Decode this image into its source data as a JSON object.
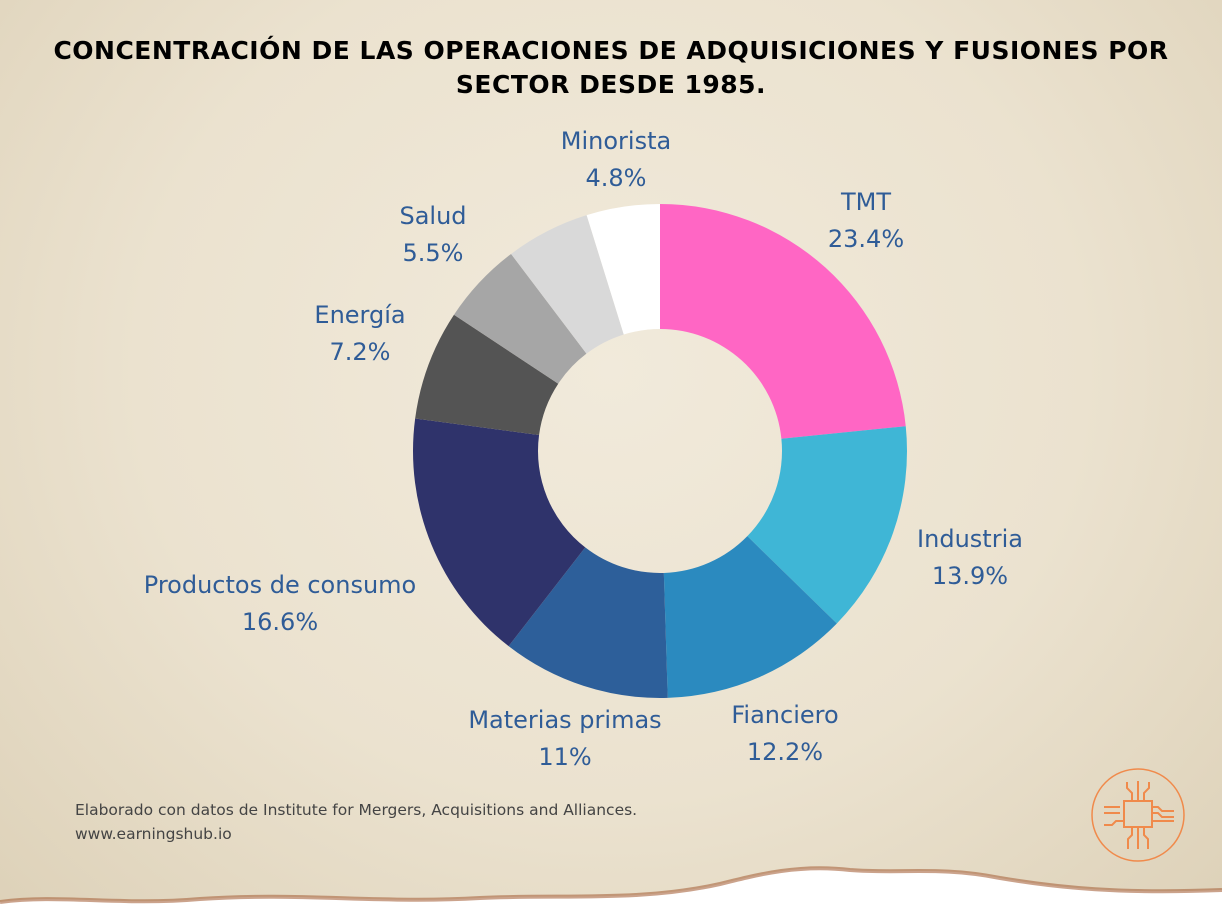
{
  "chart_data": {
    "type": "pie",
    "donut": true,
    "title": "CONCENTRACIÓN DE LAS OPERACIONES DE ADQUISICIONES Y FUSIONES POR SECTOR DESDE 1985.",
    "slices": [
      {
        "label": "TMT",
        "value_label": "23.4%",
        "value": 23.4,
        "color": "#ff66c4"
      },
      {
        "label": "Industria",
        "value_label": "13.9%",
        "value": 13.9,
        "color": "#3fb6d6"
      },
      {
        "label": "Fianciero",
        "value_label": "12.2%",
        "value": 12.2,
        "color": "#2b8abf"
      },
      {
        "label": "Materias primas",
        "value_label": "11%",
        "value": 11,
        "color": "#2d5f9a"
      },
      {
        "label": "Productos de consumo",
        "value_label": "16.6%",
        "value": 16.6,
        "color": "#2f336b"
      },
      {
        "label": "Energía",
        "value_label": "7.2%",
        "value": 7.2,
        "color": "#545454"
      },
      {
        "label": "",
        "value_label": "",
        "value": 5.4,
        "color": "#a6a6a6"
      },
      {
        "label": "Salud",
        "value_label": "5.5%",
        "value": 5.5,
        "color": "#d9d9d9"
      },
      {
        "label": "Minorista",
        "value_label": "4.8%",
        "value": 4.8,
        "color": "#ffffff"
      }
    ]
  },
  "footer": {
    "source": "Elaborado con datos de Institute for Mergers, Acquisitions and Alliances.",
    "url": "www.earningshub.io"
  },
  "logo": {
    "icon": "circuit-chip-icon",
    "color": "#f08a4b"
  }
}
